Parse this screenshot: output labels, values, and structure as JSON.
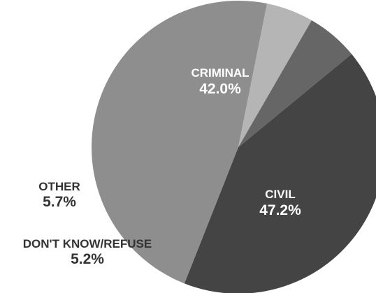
{
  "chart_data": {
    "type": "pie",
    "slices": [
      {
        "label": "CRIMINAL",
        "value": 42.0,
        "display": "42.0%",
        "color": "#444444",
        "label_color": "#ffffff"
      },
      {
        "label": "CIVIL",
        "value": 47.2,
        "display": "47.2%",
        "color": "#8e8e8e",
        "label_color": "#ffffff"
      },
      {
        "label": "DON'T KNOW/REFUSE",
        "value": 5.2,
        "display": "5.2%",
        "color": "#b5b5b5",
        "label_color": "#333333"
      },
      {
        "label": "OTHER",
        "value": 5.7,
        "display": "5.7%",
        "color": "#666666",
        "label_color": "#333333"
      }
    ],
    "title": "",
    "legend": "none"
  }
}
